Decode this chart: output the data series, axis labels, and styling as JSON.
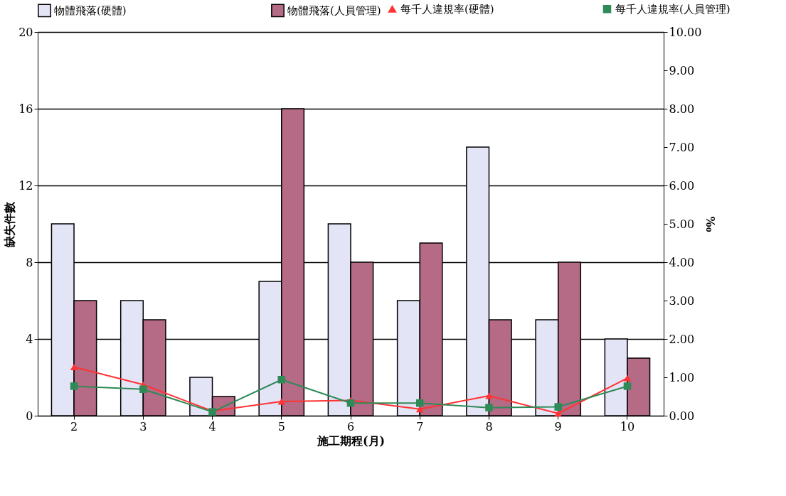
{
  "chart_data": {
    "type": "bar",
    "xlabel": "施工期程(月)",
    "ylabel": "缺失件數",
    "y2label": "‰",
    "categories": [
      "2",
      "3",
      "4",
      "5",
      "6",
      "7",
      "8",
      "9",
      "10"
    ],
    "series": [
      {
        "name": "物體飛落(硬體)",
        "color": "#e4e4f7",
        "values": [
          10,
          6,
          2,
          7,
          10,
          6,
          14,
          5,
          4
        ]
      },
      {
        "name": "物體飛落(人員管理)",
        "color": "#b56a86",
        "values": [
          6,
          5,
          1,
          16,
          8,
          9,
          5,
          8,
          3
        ]
      },
      {
        "name": "每千人違規率(硬體)",
        "type": "line",
        "axis": "y2",
        "marker": "triangle",
        "color": "#ff3333",
        "values": [
          1.27,
          0.81,
          0.12,
          0.37,
          0.4,
          0.17,
          0.52,
          0.06,
          0.98
        ]
      },
      {
        "name": "每千人違規率(人員管理)",
        "type": "line",
        "axis": "y2",
        "marker": "square",
        "color": "#2e8b57",
        "values": [
          0.77,
          0.69,
          0.1,
          0.94,
          0.33,
          0.33,
          0.21,
          0.23,
          0.77
        ]
      }
    ],
    "ylim": [
      0,
      20
    ],
    "yticks": [
      0,
      4,
      8,
      12,
      16,
      20
    ],
    "y2lim": [
      0,
      10
    ],
    "y2ticks": [
      {
        "value": 0,
        "label": "0.00"
      },
      {
        "value": 1,
        "label": "1.00"
      },
      {
        "value": 2,
        "label": "2.00"
      },
      {
        "value": 3,
        "label": "3.00"
      },
      {
        "value": 4,
        "label": "4.00"
      },
      {
        "value": 5,
        "label": "5.00"
      },
      {
        "value": 6,
        "label": "6.00"
      },
      {
        "value": 7,
        "label": "7.00"
      },
      {
        "value": 8,
        "label": "8.00"
      },
      {
        "value": 9,
        "label": "9.00"
      },
      {
        "value": 10,
        "label": "10.00"
      }
    ],
    "grid": "y",
    "legend": "top",
    "line_style": "solid"
  }
}
